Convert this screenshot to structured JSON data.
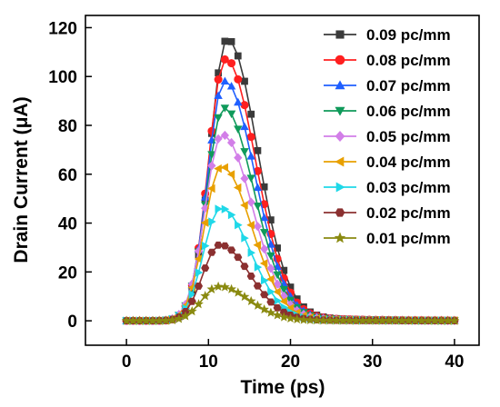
{
  "chart_data": {
    "type": "line",
    "xlabel": "Time (ps)",
    "ylabel": "Drain Current (μA)",
    "xlim": [
      -5,
      43
    ],
    "ylim": [
      -10,
      125
    ],
    "xticks": [
      0,
      10,
      20,
      30,
      40
    ],
    "yticks": [
      0,
      20,
      40,
      60,
      80,
      100,
      120
    ],
    "grid": false,
    "legend_position": "top-right",
    "x": [
      0,
      0.8,
      1.6,
      2.4,
      3.2,
      4.0,
      4.8,
      5.6,
      6.4,
      7.2,
      8.0,
      8.8,
      9.6,
      10.4,
      11.2,
      12.0,
      12.8,
      13.6,
      14.4,
      15.2,
      16.0,
      16.8,
      17.6,
      18.4,
      19.2,
      20.0,
      20.8,
      21.6,
      22.4,
      23.2,
      24.0,
      24.8,
      25.6,
      26.4,
      27.2,
      28.0,
      28.8,
      29.6,
      30.4,
      31.2,
      32.0,
      32.8,
      33.6,
      34.4,
      35.2,
      36.0,
      36.8,
      37.6,
      38.4,
      39.2,
      40.0
    ],
    "series": [
      {
        "name": "0.09 pc/mm",
        "color": "#3a3a3a",
        "marker": "square",
        "peak": 115,
        "peak_t": 12.2
      },
      {
        "name": "0.08 pc/mm",
        "color": "#ff1f1f",
        "marker": "circle",
        "peak": 107,
        "peak_t": 12.0
      },
      {
        "name": "0.07 pc/mm",
        "color": "#1f5fff",
        "marker": "triangle-up",
        "peak": 98,
        "peak_t": 11.9
      },
      {
        "name": "0.06 pc/mm",
        "color": "#0f9a5a",
        "marker": "triangle-down",
        "peak": 87,
        "peak_t": 11.8
      },
      {
        "name": "0.05 pc/mm",
        "color": "#d27ee8",
        "marker": "diamond",
        "peak": 76,
        "peak_t": 11.6
      },
      {
        "name": "0.04 pc/mm",
        "color": "#e8a000",
        "marker": "triangle-left",
        "peak": 63,
        "peak_t": 11.5
      },
      {
        "name": "0.03 pc/mm",
        "color": "#1fd8e8",
        "marker": "triangle-right",
        "peak": 46,
        "peak_t": 11.4
      },
      {
        "name": "0.02 pc/mm",
        "color": "#8b3030",
        "marker": "hexagon",
        "peak": 31,
        "peak_t": 11.3
      },
      {
        "name": "0.01 pc/mm",
        "color": "#8a8a10",
        "marker": "star",
        "peak": 14,
        "peak_t": 11.2
      }
    ]
  }
}
